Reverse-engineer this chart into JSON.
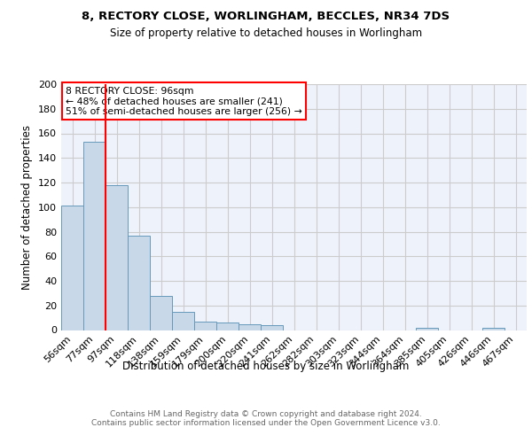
{
  "title1": "8, RECTORY CLOSE, WORLINGHAM, BECCLES, NR34 7DS",
  "title2": "Size of property relative to detached houses in Worlingham",
  "xlabel": "Distribution of detached houses by size in Worlingham",
  "ylabel": "Number of detached properties",
  "categories": [
    "56sqm",
    "77sqm",
    "97sqm",
    "118sqm",
    "138sqm",
    "159sqm",
    "179sqm",
    "200sqm",
    "220sqm",
    "241sqm",
    "262sqm",
    "282sqm",
    "303sqm",
    "323sqm",
    "344sqm",
    "364sqm",
    "385sqm",
    "405sqm",
    "426sqm",
    "446sqm",
    "467sqm"
  ],
  "values": [
    101,
    153,
    118,
    77,
    28,
    15,
    7,
    6,
    5,
    4,
    0,
    0,
    0,
    0,
    0,
    0,
    2,
    0,
    0,
    2,
    0
  ],
  "bar_color": "#c8d8e8",
  "bar_edge_color": "#6699bb",
  "grid_color": "#cccccc",
  "background_color": "#eef2fb",
  "vline_color": "red",
  "vline_x_index": 2,
  "annotation_line1": "8 RECTORY CLOSE: 96sqm",
  "annotation_line2": "← 48% of detached houses are smaller (241)",
  "annotation_line3": "51% of semi-detached houses are larger (256) →",
  "annotation_box_color": "white",
  "annotation_box_edge": "red",
  "footer": "Contains HM Land Registry data © Crown copyright and database right 2024.\nContains public sector information licensed under the Open Government Licence v3.0.",
  "ylim": [
    0,
    200
  ],
  "yticks": [
    0,
    20,
    40,
    60,
    80,
    100,
    120,
    140,
    160,
    180,
    200
  ]
}
